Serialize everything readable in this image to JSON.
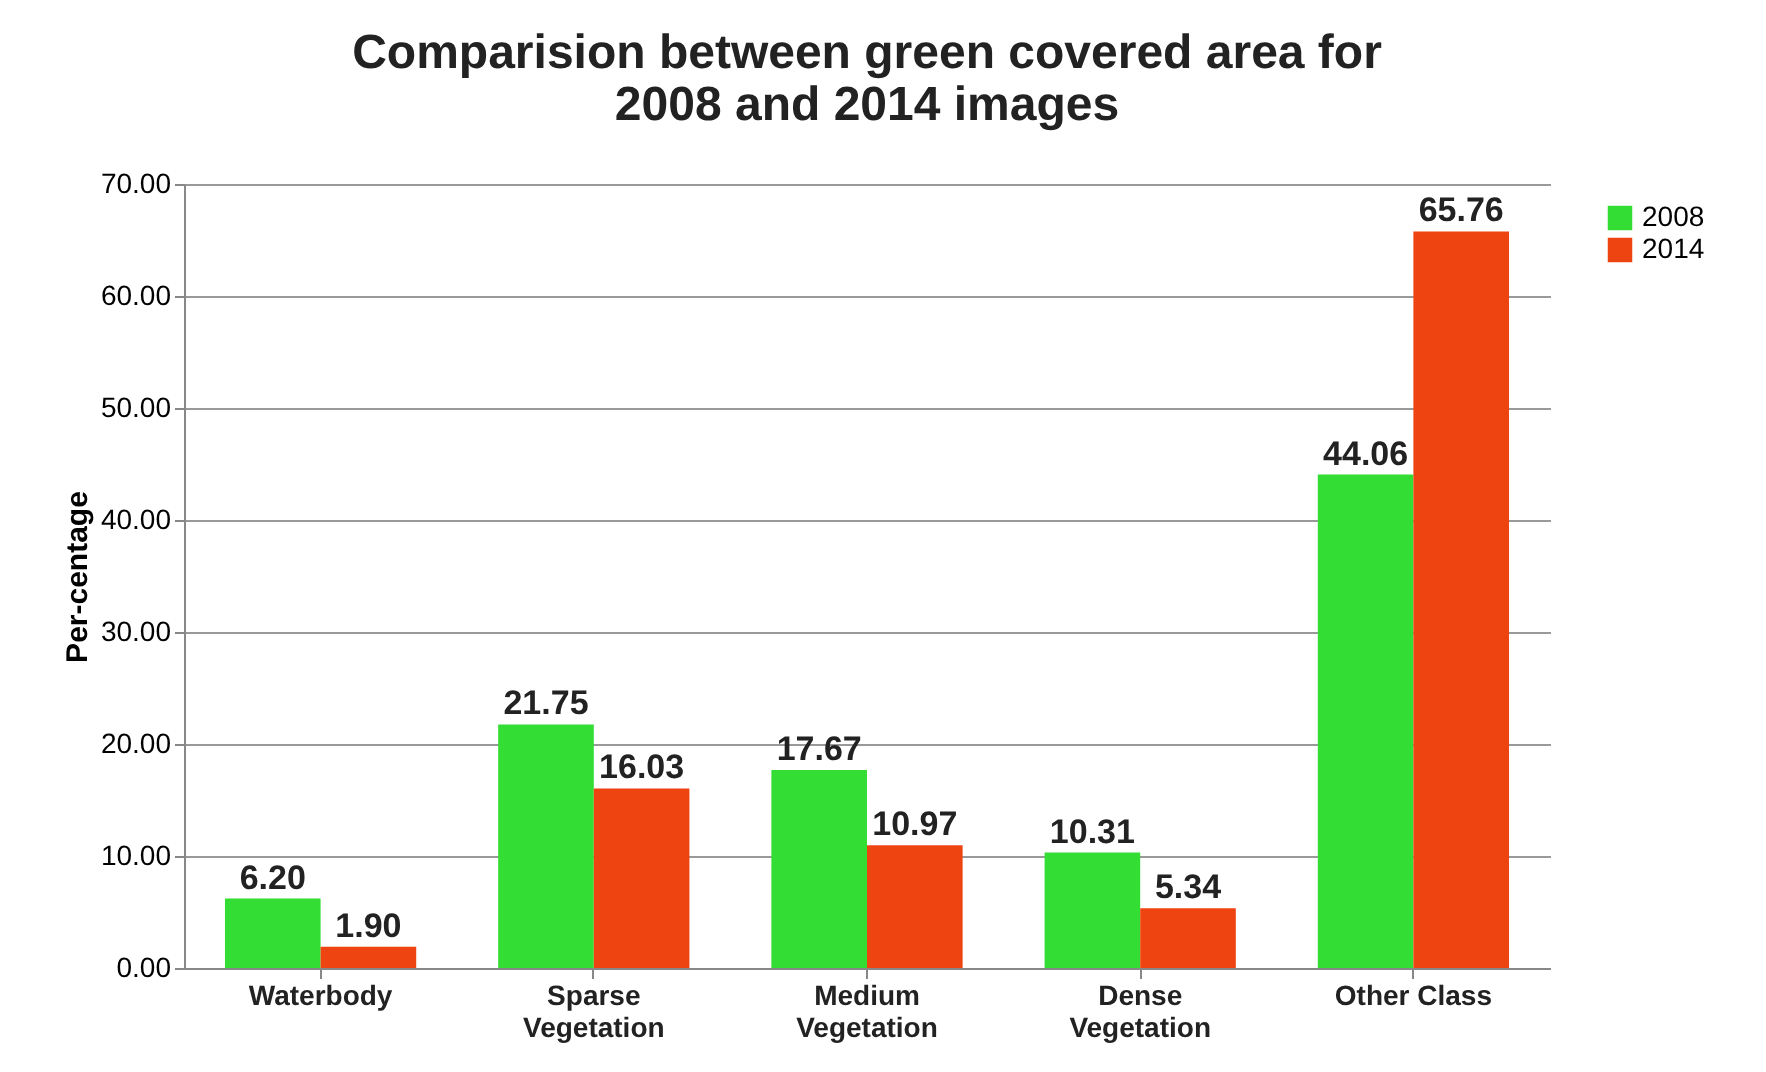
{
  "chart_data": {
    "type": "bar",
    "title": "Comparision between green covered area for\n2008 and 2014 images",
    "ylabel": "Per-centage",
    "categories": [
      "Waterbody",
      "Sparse\nVegetation",
      "Medium\nVegetation",
      "Dense\nVegetation",
      "Other Class"
    ],
    "series": [
      {
        "name": "2008",
        "color": "#33dd33",
        "values": [
          6.2,
          21.75,
          17.67,
          10.31,
          44.06
        ],
        "value_labels": [
          "6.20",
          "21.75",
          "17.67",
          "10.31",
          "44.06"
        ]
      },
      {
        "name": "2014",
        "color": "#ee4411",
        "values": [
          1.9,
          16.03,
          10.97,
          5.34,
          65.76
        ],
        "value_labels": [
          "1.90",
          "16.03",
          "10.97",
          "5.34",
          "65.76"
        ]
      }
    ],
    "ylim": [
      0,
      70
    ],
    "yticks": [
      {
        "value": 0,
        "label": "0.00"
      },
      {
        "value": 10,
        "label": "10.00"
      },
      {
        "value": 20,
        "label": "20.00"
      },
      {
        "value": 30,
        "label": "30.00"
      },
      {
        "value": 40,
        "label": "40.00"
      },
      {
        "value": 50,
        "label": "50.00"
      },
      {
        "value": 60,
        "label": "60.00"
      },
      {
        "value": 70,
        "label": "70.00"
      }
    ],
    "grid": "y",
    "legend": "right"
  }
}
